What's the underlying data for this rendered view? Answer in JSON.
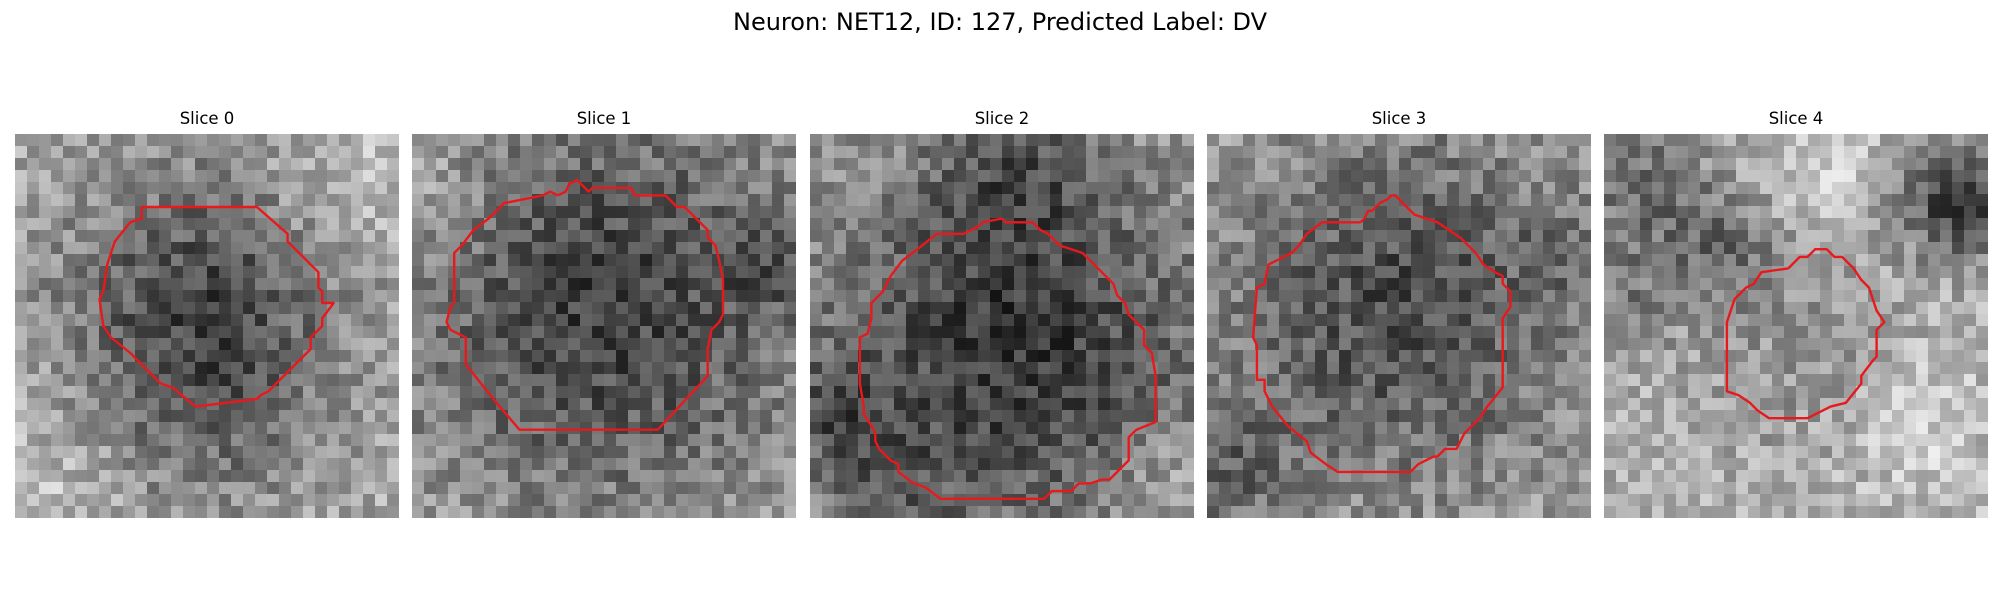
{
  "figure": {
    "title": "Neuron: NET12, ID: 127, Predicted Label: DV"
  },
  "outline_color": "#e8191c",
  "panels": [
    {
      "title": "Slice 0",
      "seed": 11,
      "brightness": 0.68,
      "blobs": [
        [
          0.49,
          0.44,
          0.27,
          -0.38
        ],
        [
          0.49,
          0.76,
          0.22,
          -0.12
        ],
        [
          0.85,
          0.15,
          0.14,
          0.12
        ],
        [
          0.08,
          0.9,
          0.16,
          0.1
        ]
      ],
      "outline": [
        [
          0.33,
          0.19
        ],
        [
          0.63,
          0.19
        ],
        [
          0.71,
          0.26
        ],
        [
          0.71,
          0.28
        ],
        [
          0.79,
          0.36
        ],
        [
          0.79,
          0.4
        ],
        [
          0.8,
          0.41
        ],
        [
          0.8,
          0.44
        ],
        [
          0.83,
          0.44
        ],
        [
          0.8,
          0.48
        ],
        [
          0.8,
          0.5
        ],
        [
          0.77,
          0.53
        ],
        [
          0.77,
          0.56
        ],
        [
          0.66,
          0.67
        ],
        [
          0.64,
          0.68
        ],
        [
          0.63,
          0.69
        ],
        [
          0.47,
          0.71
        ],
        [
          0.41,
          0.66
        ],
        [
          0.38,
          0.65
        ],
        [
          0.3,
          0.57
        ],
        [
          0.25,
          0.53
        ],
        [
          0.23,
          0.5
        ],
        [
          0.22,
          0.43
        ],
        [
          0.23,
          0.41
        ],
        [
          0.24,
          0.34
        ],
        [
          0.25,
          0.31
        ],
        [
          0.26,
          0.28
        ],
        [
          0.3,
          0.23
        ],
        [
          0.33,
          0.22
        ]
      ]
    },
    {
      "title": "Slice 1",
      "seed": 23,
      "brightness": 0.67,
      "blobs": [
        [
          0.5,
          0.45,
          0.38,
          -0.42
        ],
        [
          0.05,
          0.18,
          0.12,
          0.1
        ],
        [
          0.95,
          0.35,
          0.1,
          -0.15
        ]
      ],
      "outline": [
        [
          0.38,
          0.16
        ],
        [
          0.4,
          0.15
        ],
        [
          0.41,
          0.13
        ],
        [
          0.43,
          0.12
        ],
        [
          0.44,
          0.13
        ],
        [
          0.46,
          0.15
        ],
        [
          0.47,
          0.14
        ],
        [
          0.57,
          0.14
        ],
        [
          0.58,
          0.16
        ],
        [
          0.66,
          0.16
        ],
        [
          0.69,
          0.19
        ],
        [
          0.71,
          0.19
        ],
        [
          0.77,
          0.25
        ],
        [
          0.77,
          0.27
        ],
        [
          0.79,
          0.29
        ],
        [
          0.8,
          0.33
        ],
        [
          0.81,
          0.38
        ],
        [
          0.81,
          0.47
        ],
        [
          0.8,
          0.49
        ],
        [
          0.78,
          0.51
        ],
        [
          0.77,
          0.56
        ],
        [
          0.77,
          0.63
        ],
        [
          0.64,
          0.77
        ],
        [
          0.28,
          0.77
        ],
        [
          0.22,
          0.7
        ],
        [
          0.18,
          0.65
        ],
        [
          0.14,
          0.6
        ],
        [
          0.14,
          0.53
        ],
        [
          0.1,
          0.51
        ],
        [
          0.09,
          0.49
        ],
        [
          0.1,
          0.45
        ],
        [
          0.11,
          0.44
        ],
        [
          0.11,
          0.42
        ],
        [
          0.11,
          0.31
        ],
        [
          0.13,
          0.29
        ],
        [
          0.16,
          0.25
        ],
        [
          0.2,
          0.22
        ],
        [
          0.24,
          0.18
        ],
        [
          0.29,
          0.17
        ],
        [
          0.34,
          0.16
        ],
        [
          0.36,
          0.15
        ]
      ]
    },
    {
      "title": "Slice 2",
      "seed": 37,
      "brightness": 0.66,
      "blobs": [
        [
          0.53,
          0.55,
          0.37,
          -0.45
        ],
        [
          0.55,
          0.08,
          0.14,
          -0.18
        ],
        [
          0.05,
          0.72,
          0.1,
          -0.22
        ],
        [
          0.18,
          0.93,
          0.12,
          -0.15
        ],
        [
          0.93,
          0.9,
          0.1,
          0.12
        ]
      ],
      "outline": [
        [
          0.5,
          0.22
        ],
        [
          0.51,
          0.23
        ],
        [
          0.58,
          0.23
        ],
        [
          0.6,
          0.25
        ],
        [
          0.62,
          0.26
        ],
        [
          0.65,
          0.29
        ],
        [
          0.71,
          0.31
        ],
        [
          0.73,
          0.33
        ],
        [
          0.79,
          0.39
        ],
        [
          0.8,
          0.42
        ],
        [
          0.82,
          0.44
        ],
        [
          0.83,
          0.47
        ],
        [
          0.85,
          0.49
        ],
        [
          0.87,
          0.51
        ],
        [
          0.87,
          0.55
        ],
        [
          0.89,
          0.57
        ],
        [
          0.9,
          0.63
        ],
        [
          0.9,
          0.75
        ],
        [
          0.85,
          0.77
        ],
        [
          0.83,
          0.79
        ],
        [
          0.83,
          0.85
        ],
        [
          0.78,
          0.9
        ],
        [
          0.76,
          0.9
        ],
        [
          0.73,
          0.91
        ],
        [
          0.7,
          0.91
        ],
        [
          0.68,
          0.93
        ],
        [
          0.63,
          0.93
        ],
        [
          0.61,
          0.95
        ],
        [
          0.34,
          0.95
        ],
        [
          0.3,
          0.92
        ],
        [
          0.27,
          0.91
        ],
        [
          0.23,
          0.88
        ],
        [
          0.23,
          0.86
        ],
        [
          0.21,
          0.85
        ],
        [
          0.18,
          0.82
        ],
        [
          0.17,
          0.8
        ],
        [
          0.17,
          0.78
        ],
        [
          0.16,
          0.76
        ],
        [
          0.14,
          0.73
        ],
        [
          0.14,
          0.71
        ],
        [
          0.13,
          0.65
        ],
        [
          0.13,
          0.53
        ],
        [
          0.15,
          0.52
        ],
        [
          0.16,
          0.48
        ],
        [
          0.16,
          0.44
        ],
        [
          0.18,
          0.42
        ],
        [
          0.19,
          0.41
        ],
        [
          0.21,
          0.37
        ],
        [
          0.24,
          0.33
        ],
        [
          0.28,
          0.3
        ],
        [
          0.33,
          0.26
        ],
        [
          0.4,
          0.26
        ],
        [
          0.42,
          0.25
        ],
        [
          0.44,
          0.24
        ],
        [
          0.45,
          0.23
        ]
      ]
    },
    {
      "title": "Slice 3",
      "seed": 41,
      "brightness": 0.64,
      "blobs": [
        [
          0.5,
          0.45,
          0.32,
          -0.35
        ],
        [
          0.05,
          0.88,
          0.14,
          -0.2
        ],
        [
          0.95,
          0.3,
          0.1,
          -0.12
        ]
      ],
      "outline": [
        [
          0.4,
          0.23
        ],
        [
          0.41,
          0.22
        ],
        [
          0.42,
          0.2
        ],
        [
          0.43,
          0.2
        ],
        [
          0.45,
          0.18
        ],
        [
          0.47,
          0.17
        ],
        [
          0.48,
          0.16
        ],
        [
          0.49,
          0.16
        ],
        [
          0.51,
          0.18
        ],
        [
          0.52,
          0.19
        ],
        [
          0.54,
          0.21
        ],
        [
          0.6,
          0.23
        ],
        [
          0.63,
          0.25
        ],
        [
          0.66,
          0.27
        ],
        [
          0.7,
          0.31
        ],
        [
          0.72,
          0.34
        ],
        [
          0.75,
          0.36
        ],
        [
          0.77,
          0.37
        ],
        [
          0.77,
          0.39
        ],
        [
          0.79,
          0.41
        ],
        [
          0.79,
          0.45
        ],
        [
          0.77,
          0.48
        ],
        [
          0.77,
          0.66
        ],
        [
          0.73,
          0.71
        ],
        [
          0.71,
          0.74
        ],
        [
          0.67,
          0.78
        ],
        [
          0.65,
          0.82
        ],
        [
          0.62,
          0.82
        ],
        [
          0.6,
          0.84
        ],
        [
          0.59,
          0.84
        ],
        [
          0.55,
          0.86
        ],
        [
          0.53,
          0.88
        ],
        [
          0.34,
          0.88
        ],
        [
          0.31,
          0.86
        ],
        [
          0.27,
          0.83
        ],
        [
          0.26,
          0.8
        ],
        [
          0.21,
          0.76
        ],
        [
          0.17,
          0.71
        ],
        [
          0.15,
          0.67
        ],
        [
          0.15,
          0.64
        ],
        [
          0.13,
          0.64
        ],
        [
          0.13,
          0.55
        ],
        [
          0.12,
          0.53
        ],
        [
          0.13,
          0.4
        ],
        [
          0.15,
          0.39
        ],
        [
          0.16,
          0.34
        ],
        [
          0.22,
          0.31
        ],
        [
          0.24,
          0.29
        ],
        [
          0.26,
          0.26
        ],
        [
          0.3,
          0.23
        ],
        [
          0.37,
          0.23
        ]
      ]
    },
    {
      "title": "Slice 4",
      "seed": 53,
      "brightness": 0.7,
      "blobs": [
        [
          0.5,
          0.55,
          0.2,
          -0.12
        ],
        [
          0.1,
          0.15,
          0.14,
          -0.28
        ],
        [
          0.87,
          0.15,
          0.12,
          -0.3
        ],
        [
          0.97,
          0.2,
          0.08,
          -0.35
        ],
        [
          0.32,
          0.3,
          0.1,
          -0.22
        ],
        [
          0.05,
          0.45,
          0.1,
          -0.18
        ],
        [
          0.62,
          0.1,
          0.12,
          0.15
        ],
        [
          0.82,
          0.75,
          0.12,
          0.12
        ]
      ],
      "outline": [
        [
          0.48,
          0.35
        ],
        [
          0.51,
          0.32
        ],
        [
          0.53,
          0.32
        ],
        [
          0.55,
          0.3
        ],
        [
          0.58,
          0.3
        ],
        [
          0.6,
          0.32
        ],
        [
          0.62,
          0.32
        ],
        [
          0.65,
          0.35
        ],
        [
          0.67,
          0.38
        ],
        [
          0.69,
          0.4
        ],
        [
          0.71,
          0.46
        ],
        [
          0.73,
          0.49
        ],
        [
          0.71,
          0.51
        ],
        [
          0.71,
          0.58
        ],
        [
          0.7,
          0.59
        ],
        [
          0.67,
          0.63
        ],
        [
          0.67,
          0.65
        ],
        [
          0.63,
          0.7
        ],
        [
          0.59,
          0.71
        ],
        [
          0.55,
          0.73
        ],
        [
          0.53,
          0.74
        ],
        [
          0.43,
          0.74
        ],
        [
          0.4,
          0.72
        ],
        [
          0.38,
          0.7
        ],
        [
          0.35,
          0.68
        ],
        [
          0.32,
          0.67
        ],
        [
          0.32,
          0.49
        ],
        [
          0.33,
          0.46
        ],
        [
          0.34,
          0.43
        ],
        [
          0.37,
          0.4
        ],
        [
          0.39,
          0.39
        ],
        [
          0.41,
          0.36
        ]
      ]
    }
  ]
}
